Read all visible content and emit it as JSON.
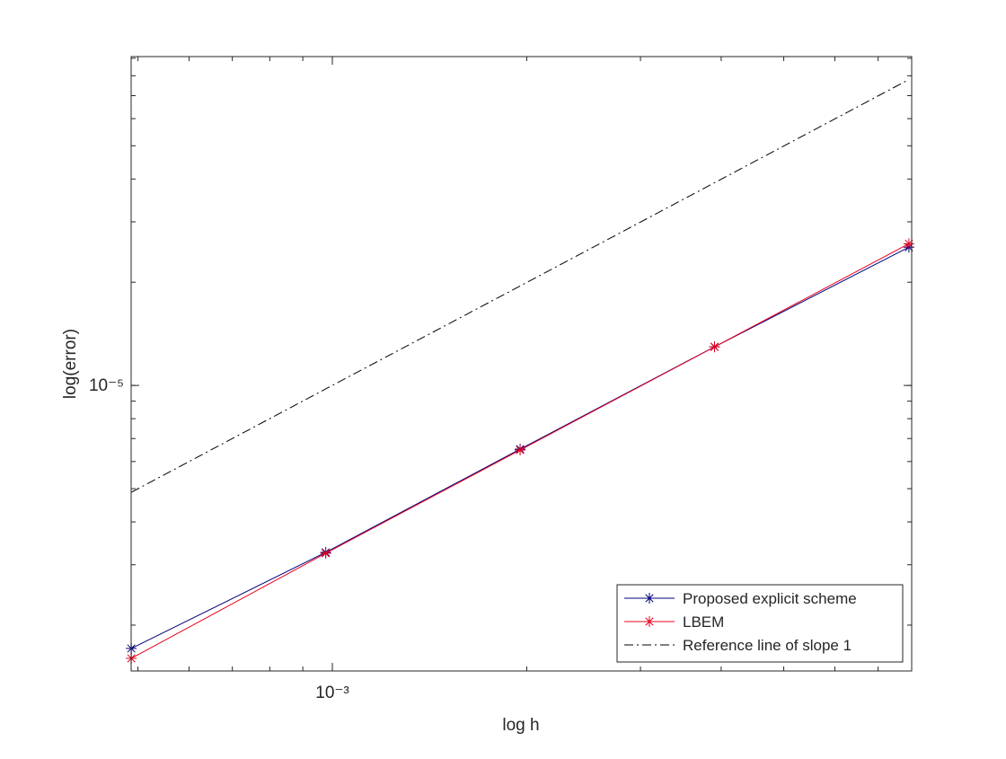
{
  "chart_data": {
    "type": "line",
    "xlabel": "log h",
    "ylabel": "log(error)",
    "x": [
      0.00048828125,
      0.0009765625,
      0.001953125,
      0.00390625,
      0.0078125
    ],
    "series": [
      {
        "name": "Proposed explicit scheme",
        "color": "#00007f",
        "marker": "*",
        "linestyle": "solid",
        "values": [
          1.71e-06,
          3.26e-06,
          6.52e-06,
          1.296e-05,
          2.53e-05
        ]
      },
      {
        "name": "LBEM",
        "color": "#e8001c",
        "marker": "*",
        "linestyle": "solid",
        "values": [
          1.6e-06,
          3.24e-06,
          6.48e-06,
          1.296e-05,
          2.59e-05
        ]
      },
      {
        "name": "Reference line of slope 1",
        "color": "#000000",
        "marker": "none",
        "linestyle": "dashdot",
        "values": [
          4.88e-06,
          9.77e-06,
          1.95e-05,
          3.9e-05,
          7.8e-05
        ]
      }
    ],
    "xlim": [
      0.000488,
      0.00789
    ],
    "ylim": [
      1.47e-06,
      9.1e-05
    ],
    "xticks": [
      {
        "value": 0.001,
        "label": "10⁻³"
      }
    ],
    "yticks": [
      {
        "value": 1e-05,
        "label": "10⁻⁵"
      }
    ],
    "xscale": "log",
    "yscale": "log",
    "minor_ticks": true,
    "grid": false,
    "legend": "lower right"
  }
}
